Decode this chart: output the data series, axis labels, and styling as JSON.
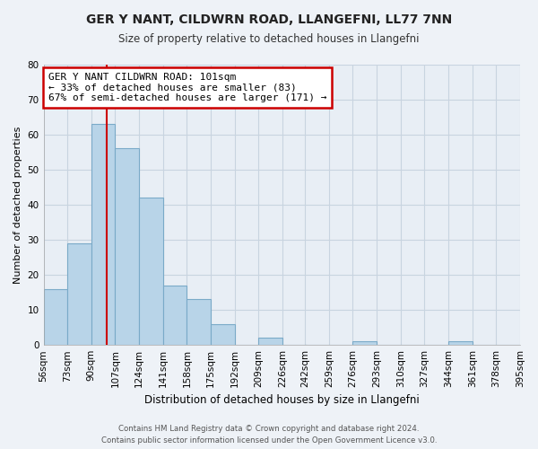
{
  "title": "GER Y NANT, CILDWRN ROAD, LLANGEFNI, LL77 7NN",
  "subtitle": "Size of property relative to detached houses in Llangefni",
  "xlabel": "Distribution of detached houses by size in Llangefni",
  "ylabel": "Number of detached properties",
  "bin_edges": [
    56,
    73,
    90,
    107,
    124,
    141,
    158,
    175,
    192,
    209,
    226,
    242,
    259,
    276,
    293,
    310,
    327,
    344,
    361,
    378,
    395
  ],
  "bar_heights": [
    16,
    29,
    63,
    56,
    42,
    17,
    13,
    6,
    0,
    2,
    0,
    0,
    0,
    1,
    0,
    0,
    0,
    1,
    0,
    0
  ],
  "bar_color": "#b8d4e8",
  "bar_edge_color": "#7aaac8",
  "property_size": 101,
  "red_line_color": "#cc0000",
  "annotation_line1": "GER Y NANT CILDWRN ROAD: 101sqm",
  "annotation_line2": "← 33% of detached houses are smaller (83)",
  "annotation_line3": "67% of semi-detached houses are larger (171) →",
  "annotation_box_edge": "#cc0000",
  "ylim": [
    0,
    80
  ],
  "yticks": [
    0,
    10,
    20,
    30,
    40,
    50,
    60,
    70,
    80
  ],
  "tick_labels": [
    "56sqm",
    "73sqm",
    "90sqm",
    "107sqm",
    "124sqm",
    "141sqm",
    "158sqm",
    "175sqm",
    "192sqm",
    "209sqm",
    "226sqm",
    "242sqm",
    "259sqm",
    "276sqm",
    "293sqm",
    "310sqm",
    "327sqm",
    "344sqm",
    "361sqm",
    "378sqm",
    "395sqm"
  ],
  "footer": "Contains HM Land Registry data © Crown copyright and database right 2024.\nContains public sector information licensed under the Open Government Licence v3.0.",
  "bg_color": "#eef2f7",
  "plot_bg_color": "#e8eef5",
  "grid_color": "#c8d4e0"
}
